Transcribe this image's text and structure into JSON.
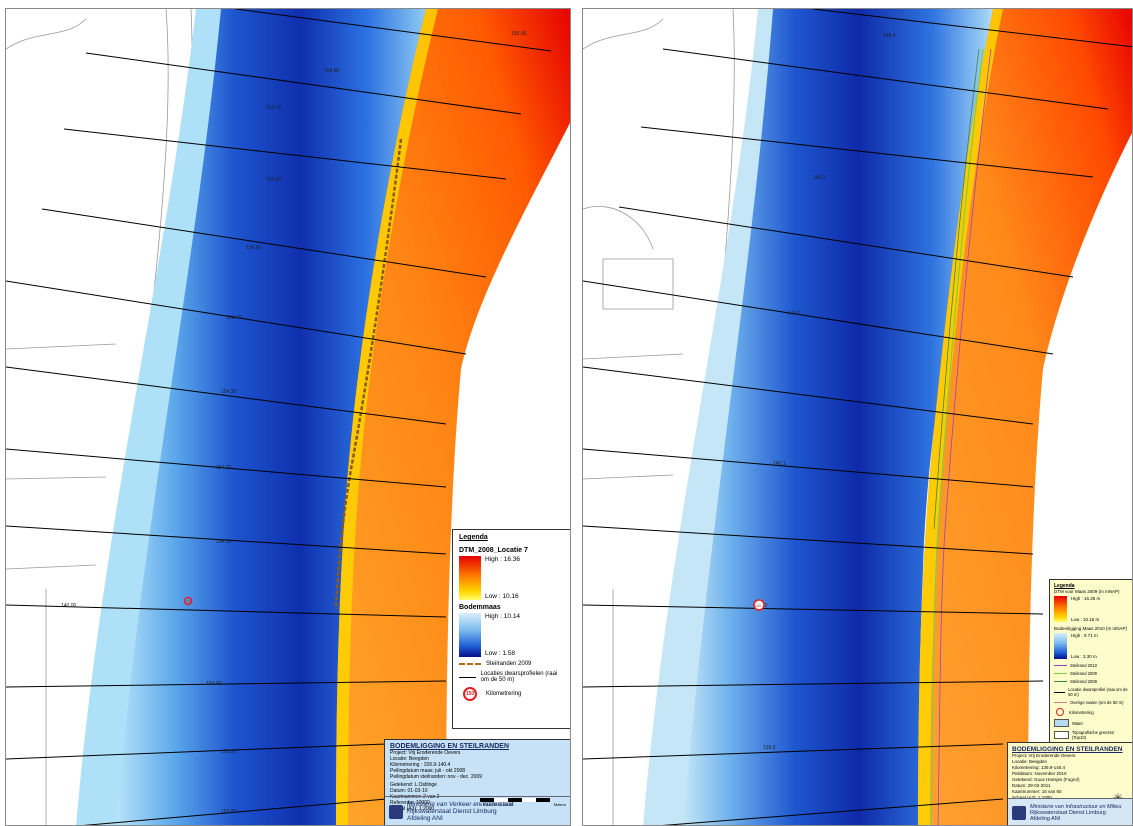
{
  "left": {
    "profile_labels": [
      "155.00",
      "154.80",
      "154.70",
      "154.60",
      "154.50",
      "154.40",
      "154.30",
      "154.20",
      "154.10",
      "140.00",
      "154.00",
      "153.90",
      "153.80"
    ],
    "km_marker": "150",
    "legend": {
      "title": "Legenda",
      "layer1_title": "DTM_2008_Locatie 7",
      "layer1_high": "High : 16.36",
      "layer1_low": "Low : 10.16",
      "layer2_title": "Bodemmaas",
      "layer2_high": "High : 10.14",
      "layer2_low": "Low : 1.58",
      "item_steilranden": "Steilranden 2009",
      "item_locaties": "Locaties dwarsprofielen (raai om de 50 m)",
      "item_km": "Kilometrering",
      "km_badge": "150"
    },
    "titleblock": {
      "title": "BODEMLIGGING EN STEILRANDEN",
      "project": "Project: Vrij Eroderende Oevers",
      "locatie": "Locatie: Beegden",
      "km": "Kilometrering : 159.9-140.4",
      "peil_maas": "Peilingdatum maas: juli - okt 2008",
      "peil_steil": "Peilingdatum steilranden: nov - dec. 2009",
      "getekend": "Getekend:     L.Ostlinge",
      "datum": "Datum:         01-03-10",
      "kaart": "Kaartnummer: 2 van 2",
      "referentie": "Referentie:    10000",
      "schaal": "Schaal (A3):  1:2000",
      "scale_ticks": "0  5  10    20    30    40    50",
      "scale_unit": "Meters",
      "ministry1": "Ministerie van Verkeer en Waterstaat",
      "ministry2": "Rijkswaterstaat Dienst Limburg",
      "ministry3": "Afdeling ANI"
    }
  },
  "right": {
    "profile_labels": [
      "140.4",
      "140.3",
      "140.2",
      "140.1",
      "140.0",
      "139.9"
    ],
    "km_marker": "140",
    "legend": {
      "title": "Legenda",
      "layer1_title": "DTM voor Maas 2009 (m mNAP)",
      "layer1_high": "High : 16.36 m",
      "layer1_low": "Low : 10.16 m",
      "layer2_title": "Bodemligging Maas 2010 (m mNAP)",
      "layer2_high": "High : 9.71 m",
      "layer2_low": "Low : 3.30 m",
      "item1": "Steilrand 2010",
      "item2": "Steilrand 2009",
      "item3": "Steilrand 2008",
      "item4": "Locatie dwarsprofiel (raai om de 50 m)",
      "item5": "Overige raaien (om de 50 m)",
      "item6": "Kilometrering",
      "item7": "Water",
      "item8": "Topografische grenzen (Top10)"
    },
    "titleblock": {
      "title": "BODEMLIGGING EN STEILRANDEN",
      "project": "Project:      Vrij Eroderende Oevers",
      "locatie": "Locatie:      Beegden",
      "km": "Kilometrering: 139.9-140.4",
      "peil": "Peildatum:    November 2010",
      "getekend": "Getekend:    Guus Hansjes (Fugro/)",
      "datum": "Datum:        28-02-2011",
      "kaart": "Kaartnummer: 16 van 60",
      "schaal": "Schaal (A3): 1:1000",
      "scale_unit": "Meter",
      "ministry1": "Ministerie van Infrastructuur en Milieu",
      "ministry2": "Rijkswaterstaat Dienst Limburg",
      "ministry3": "Afdeling ANI"
    }
  },
  "colors": {
    "bank_light": "#aee0f7",
    "deep": "#0a1fa0",
    "mid": "#2f6fe0",
    "orange": "#ff8a1a",
    "red": "#e60000",
    "yellow": "#ffd400",
    "km_red": "#e02020"
  }
}
